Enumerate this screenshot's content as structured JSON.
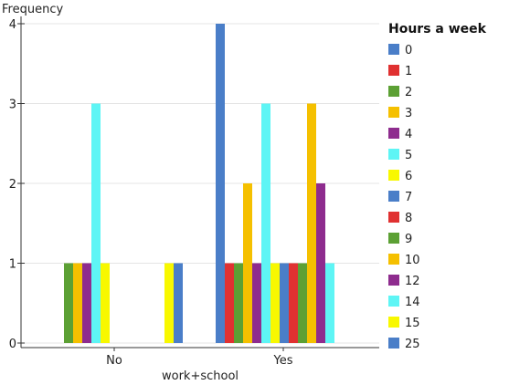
{
  "chart_data": {
    "type": "bar",
    "xlabel": "work+school",
    "ylabel": "Frequency",
    "categories": [
      "No",
      "Yes"
    ],
    "ylim": [
      0,
      4
    ],
    "yticks": [
      0,
      1,
      2,
      3,
      4
    ],
    "grid": true,
    "legend": {
      "title": "Hours a week",
      "placement": "right"
    },
    "series": [
      {
        "name": "0",
        "color": "#4a7ec8",
        "values": [
          0,
          4
        ]
      },
      {
        "name": "1",
        "color": "#e03131",
        "values": [
          0,
          1
        ]
      },
      {
        "name": "2",
        "color": "#5ca034",
        "values": [
          1,
          1
        ]
      },
      {
        "name": "3",
        "color": "#f5c000",
        "values": [
          1,
          2
        ]
      },
      {
        "name": "4",
        "color": "#8e2c8e",
        "values": [
          1,
          1
        ]
      },
      {
        "name": "5",
        "color": "#5ef5f5",
        "values": [
          3,
          3
        ]
      },
      {
        "name": "6",
        "color": "#f8f800",
        "values": [
          1,
          1
        ]
      },
      {
        "name": "7",
        "color": "#4a7ec8",
        "values": [
          0,
          1
        ]
      },
      {
        "name": "8",
        "color": "#e03131",
        "values": [
          0,
          1
        ]
      },
      {
        "name": "9",
        "color": "#5ca034",
        "values": [
          0,
          1
        ]
      },
      {
        "name": "10",
        "color": "#f5c000",
        "values": [
          0,
          3
        ]
      },
      {
        "name": "12",
        "color": "#8e2c8e",
        "values": [
          0,
          2
        ]
      },
      {
        "name": "14",
        "color": "#5ef5f5",
        "values": [
          0,
          1
        ]
      },
      {
        "name": "15",
        "color": "#f8f800",
        "values": [
          1,
          0
        ]
      },
      {
        "name": "25",
        "color": "#4a7ec8",
        "values": [
          1,
          0
        ]
      }
    ]
  }
}
